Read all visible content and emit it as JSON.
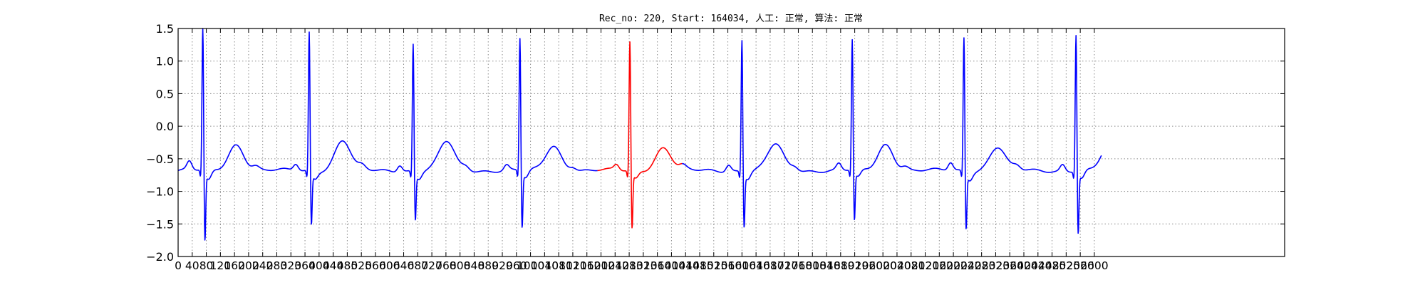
{
  "chart_data": {
    "type": "line",
    "title": "Rec_no: 220, Start: 164034, 人工: 正常, 算法: 正常",
    "xlabel": "",
    "ylabel": "",
    "xlim": [
      0,
      3140
    ],
    "ylim": [
      -2.0,
      1.5
    ],
    "grid": true,
    "yticks": [
      -2.0,
      -1.5,
      -1.0,
      -0.5,
      0.0,
      0.5,
      1.0,
      1.5
    ],
    "ytick_labels": [
      "−2.0",
      "−1.5",
      "−1.0",
      "−0.5",
      "0.0",
      "0.5",
      "1.0",
      "1.5"
    ],
    "xticks": [
      0,
      40,
      80,
      120,
      160,
      200,
      240,
      280,
      320,
      360,
      400,
      440,
      480,
      520,
      560,
      600,
      640,
      680,
      720,
      760,
      800,
      840,
      880,
      920,
      960,
      1000,
      1040,
      1080,
      1120,
      1160,
      1200,
      1240,
      1280,
      1320,
      1360,
      1400,
      1440,
      1480,
      1520,
      1560,
      1600,
      1640,
      1680,
      1720,
      1760,
      1800,
      1840,
      1880,
      1920,
      1960,
      2000,
      2040,
      2080,
      2120,
      2160,
      2200,
      2240,
      2280,
      2320,
      2360,
      2400,
      2440,
      2480,
      2520,
      2560,
      2600
    ],
    "xtick_labels": [
      "0",
      "40",
      "80",
      "120",
      "160",
      "200",
      "240",
      "280",
      "320",
      "360",
      "400",
      "440",
      "480",
      "520",
      "560",
      "600",
      "640",
      "680",
      "720",
      "760",
      "800",
      "840",
      "880",
      "920",
      "960",
      "1000",
      "1040",
      "1080",
      "1120",
      "1160",
      "1200",
      "1240",
      "1280",
      "1320",
      "1360",
      "1400",
      "1440",
      "1480",
      "1520",
      "1560",
      "1600",
      "1640",
      "1680",
      "1720",
      "1760",
      "1800",
      "1840",
      "1880",
      "1920",
      "1960",
      "2000",
      "2040",
      "2080",
      "2120",
      "2160",
      "2200",
      "2240",
      "2280",
      "2320",
      "2360",
      "2400",
      "2440",
      "2480",
      "2520",
      "2560",
      "2600"
    ],
    "x_start": 0,
    "x_step": 1,
    "beats": [
      {
        "r": 70,
        "q": -1.75,
        "s": -0.98,
        "rv": 1.55,
        "t": -0.28,
        "p": -0.55,
        "color": "#0000ff"
      },
      {
        "r": 372,
        "q": -1.5,
        "s": -0.9,
        "rv": 1.48,
        "t": -0.22,
        "p": -0.58,
        "color": "#0000ff"
      },
      {
        "r": 667,
        "q": -1.42,
        "s": -0.9,
        "rv": 1.3,
        "t": -0.24,
        "p": -0.58,
        "color": "#0000ff"
      },
      {
        "r": 970,
        "q": -1.55,
        "s": -0.9,
        "rv": 1.38,
        "t": -0.3,
        "p": -0.6,
        "color": "#0000ff"
      },
      {
        "r": 1282,
        "q": -1.56,
        "s": -0.9,
        "rv": 1.33,
        "t": -0.33,
        "p": -0.6,
        "color": "#ff0000"
      },
      {
        "r": 1600,
        "q": -1.52,
        "s": -0.9,
        "rv": 1.37,
        "t": -0.28,
        "p": -0.58,
        "color": "#0000ff"
      },
      {
        "r": 1913,
        "q": -1.45,
        "s": -0.9,
        "rv": 1.35,
        "t": -0.28,
        "p": -0.58,
        "color": "#0000ff"
      },
      {
        "r": 2230,
        "q": -1.55,
        "s": -0.92,
        "rv": 1.4,
        "t": -0.32,
        "p": -0.56,
        "color": "#0000ff"
      },
      {
        "r": 2548,
        "q": -1.63,
        "s": -0.92,
        "rv": 1.45,
        "t": -0.3,
        "p": -0.58,
        "color": "#0000ff"
      }
    ],
    "highlight_range": [
      1190,
      1430
    ],
    "series": [
      {
        "color": "#0000ff",
        "range": [
          0,
          1190
        ]
      },
      {
        "color": "#ff0000",
        "range": [
          1190,
          1430
        ]
      },
      {
        "color": "#0000ff",
        "range": [
          1430,
          2620
        ]
      }
    ],
    "baseline": -0.68,
    "colors": {
      "normal": "#0000ff",
      "highlight": "#ff0000"
    }
  }
}
